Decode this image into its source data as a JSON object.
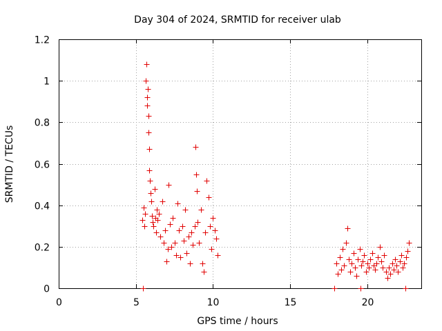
{
  "chart_data": {
    "type": "scatter",
    "title": "Day 304 of 2024, SRMTID for receiver ulab",
    "xlabel": "GPS time / hours",
    "ylabel": "SRMTID / TECUs",
    "xlim": [
      0,
      23.5
    ],
    "ylim": [
      0,
      1.2
    ],
    "x_ticks": [
      0,
      5,
      10,
      15,
      20
    ],
    "y_ticks": [
      0,
      0.2,
      0.4,
      0.6,
      0.8,
      1,
      1.2
    ],
    "x_tick_labels": [
      "0",
      "5",
      "10",
      "15",
      "20"
    ],
    "y_tick_labels": [
      "0",
      "0.2",
      "0.4",
      "0.6",
      "0.8",
      "1",
      "1.2"
    ],
    "grid": true,
    "marker": "+",
    "series": [
      {
        "name": "SRMTID",
        "color": "#e00000",
        "x": [
          5.42,
          5.5,
          5.55,
          5.6,
          5.65,
          5.7,
          5.72,
          5.75,
          5.78,
          5.8,
          5.82,
          5.85,
          5.88,
          5.9,
          5.95,
          6.0,
          6.05,
          6.1,
          6.15,
          6.2,
          6.25,
          6.3,
          6.35,
          6.4,
          6.5,
          6.6,
          6.7,
          6.8,
          6.9,
          7.0,
          7.05,
          7.1,
          7.2,
          7.3,
          7.4,
          7.5,
          7.6,
          7.7,
          7.8,
          7.9,
          8.0,
          8.1,
          8.2,
          8.3,
          8.4,
          8.5,
          8.6,
          8.7,
          8.8,
          8.85,
          8.9,
          8.95,
          9.0,
          9.1,
          9.2,
          9.3,
          9.4,
          9.5,
          9.6,
          9.7,
          9.8,
          9.9,
          10.0,
          10.1,
          10.2,
          10.3,
          5.45,
          17.85,
          18.0,
          18.1,
          18.2,
          18.3,
          18.4,
          18.5,
          18.6,
          18.7,
          18.8,
          18.9,
          19.0,
          19.1,
          19.2,
          19.3,
          19.4,
          19.5,
          19.6,
          19.7,
          19.8,
          19.9,
          20.0,
          20.1,
          20.2,
          20.3,
          20.4,
          20.5,
          20.6,
          20.7,
          20.8,
          20.9,
          21.0,
          21.1,
          21.2,
          21.3,
          21.4,
          21.5,
          21.6,
          21.7,
          21.8,
          21.9,
          22.0,
          22.1,
          22.2,
          22.3,
          22.4,
          22.5,
          22.6,
          22.7,
          19.55,
          22.45
        ],
        "y": [
          0.33,
          0.39,
          0.3,
          0.36,
          1.0,
          1.08,
          0.92,
          0.88,
          0.96,
          0.83,
          0.75,
          0.67,
          0.57,
          0.52,
          0.46,
          0.42,
          0.35,
          0.32,
          0.3,
          0.48,
          0.34,
          0.27,
          0.38,
          0.33,
          0.36,
          0.25,
          0.42,
          0.22,
          0.28,
          0.13,
          0.19,
          0.5,
          0.31,
          0.2,
          0.34,
          0.22,
          0.16,
          0.41,
          0.28,
          0.15,
          0.3,
          0.23,
          0.38,
          0.17,
          0.25,
          0.12,
          0.27,
          0.21,
          0.3,
          0.68,
          0.55,
          0.47,
          0.32,
          0.22,
          0.38,
          0.12,
          0.08,
          0.27,
          0.52,
          0.44,
          0.3,
          0.19,
          0.34,
          0.28,
          0.24,
          0.16,
          0.0,
          0.0,
          0.12,
          0.07,
          0.15,
          0.09,
          0.19,
          0.11,
          0.22,
          0.29,
          0.14,
          0.08,
          0.12,
          0.17,
          0.1,
          0.06,
          0.14,
          0.19,
          0.11,
          0.13,
          0.16,
          0.08,
          0.12,
          0.1,
          0.14,
          0.17,
          0.11,
          0.09,
          0.12,
          0.15,
          0.2,
          0.13,
          0.1,
          0.16,
          0.08,
          0.05,
          0.1,
          0.07,
          0.12,
          0.09,
          0.14,
          0.11,
          0.08,
          0.13,
          0.16,
          0.1,
          0.12,
          0.15,
          0.18,
          0.22,
          0.0,
          0.0
        ]
      }
    ]
  }
}
